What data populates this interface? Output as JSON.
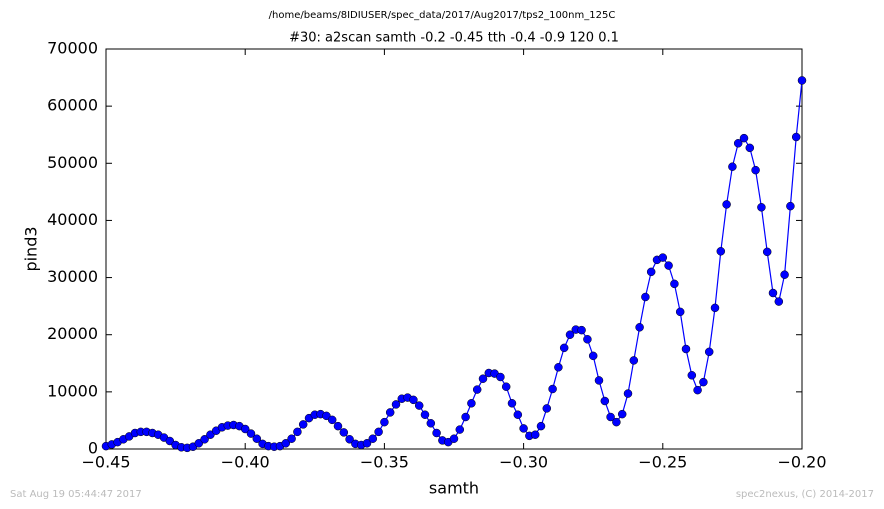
{
  "chart_data": {
    "type": "line",
    "suptitle": "/home/beams/8IDIUSER/spec_data/2017/Aug2017/tps2_100nm_125C",
    "title": "#30: a2scan  samth -0.2 -0.45  tth -0.4 -0.9  120 0.1",
    "xlabel": "samth",
    "ylabel": "pind3",
    "footer_left": "Sat Aug 19 05:44:47 2017",
    "footer_right": "spec2nexus, (C) 2014-2017",
    "color": "#0000ff",
    "x": [
      -0.45,
      -0.44792,
      -0.44583,
      -0.44375,
      -0.44167,
      -0.43958,
      -0.4375,
      -0.43542,
      -0.43333,
      -0.43125,
      -0.42917,
      -0.42708,
      -0.425,
      -0.42292,
      -0.42083,
      -0.41875,
      -0.41667,
      -0.41458,
      -0.4125,
      -0.41042,
      -0.40833,
      -0.40625,
      -0.40417,
      -0.40208,
      -0.4,
      -0.39792,
      -0.39583,
      -0.39375,
      -0.39167,
      -0.38958,
      -0.3875,
      -0.38542,
      -0.38333,
      -0.38125,
      -0.37917,
      -0.37708,
      -0.375,
      -0.37292,
      -0.37083,
      -0.36875,
      -0.36667,
      -0.36458,
      -0.3625,
      -0.36042,
      -0.35833,
      -0.35625,
      -0.35417,
      -0.35208,
      -0.35,
      -0.34792,
      -0.34583,
      -0.34375,
      -0.34167,
      -0.33958,
      -0.3375,
      -0.33542,
      -0.33333,
      -0.33125,
      -0.32917,
      -0.32708,
      -0.325,
      -0.32292,
      -0.32083,
      -0.31875,
      -0.31667,
      -0.31458,
      -0.3125,
      -0.31042,
      -0.30833,
      -0.30625,
      -0.30417,
      -0.30208,
      -0.3,
      -0.29792,
      -0.29583,
      -0.29375,
      -0.29167,
      -0.28958,
      -0.2875,
      -0.28542,
      -0.28333,
      -0.28125,
      -0.27917,
      -0.27708,
      -0.275,
      -0.27292,
      -0.27083,
      -0.26875,
      -0.26667,
      -0.26458,
      -0.2625,
      -0.26042,
      -0.25833,
      -0.25625,
      -0.25417,
      -0.25208,
      -0.25,
      -0.24792,
      -0.24583,
      -0.24375,
      -0.24167,
      -0.23958,
      -0.2375,
      -0.23542,
      -0.23333,
      -0.23125,
      -0.22917,
      -0.22708,
      -0.225,
      -0.22292,
      -0.22083,
      -0.21875,
      -0.21667,
      -0.21458,
      -0.2125,
      -0.21042,
      -0.20833,
      -0.20625,
      -0.20417,
      -0.20208,
      -0.2
    ],
    "values": [
      500,
      800,
      1200,
      1700,
      2200,
      2800,
      3000,
      3000,
      2800,
      2500,
      2000,
      1400,
      700,
      300,
      200,
      400,
      1000,
      1700,
      2500,
      3200,
      3800,
      4100,
      4200,
      4000,
      3500,
      2700,
      1800,
      900,
      500,
      400,
      500,
      1000,
      1800,
      3000,
      4300,
      5400,
      6000,
      6100,
      5800,
      5100,
      4000,
      2900,
      1700,
      900,
      700,
      1000,
      1800,
      3000,
      4700,
      6400,
      7800,
      8800,
      9000,
      8600,
      7600,
      6000,
      4500,
      2800,
      1500,
      1200,
      1800,
      3400,
      5600,
      8000,
      10400,
      12300,
      13300,
      13200,
      12600,
      10900,
      8000,
      6000,
      3600,
      2300,
      2500,
      4000,
      7100,
      10500,
      14300,
      17700,
      20000,
      20900,
      20800,
      19200,
      16300,
      12000,
      8400,
      5600,
      4700,
      6100,
      9700,
      15500,
      21300,
      26600,
      31000,
      33100,
      33500,
      32100,
      28900,
      24000,
      17500,
      12900,
      10300,
      11700,
      17000,
      24700,
      34600,
      42800,
      49400,
      53500,
      54400,
      52700,
      48800,
      42300,
      34500,
      27300,
      25800,
      30500,
      42500,
      54600,
      64500
    ],
    "xlim": [
      -0.45,
      -0.2
    ],
    "xticks": [
      {
        "value": -0.45,
        "label": "−0.45"
      },
      {
        "value": -0.4,
        "label": "−0.40"
      },
      {
        "value": -0.35,
        "label": "−0.35"
      },
      {
        "value": -0.3,
        "label": "−0.30"
      },
      {
        "value": -0.25,
        "label": "−0.25"
      },
      {
        "value": -0.2,
        "label": "−0.20"
      }
    ],
    "ylim": [
      0,
      70000
    ],
    "yticks": [
      0,
      10000,
      20000,
      30000,
      40000,
      50000,
      60000,
      70000
    ]
  }
}
